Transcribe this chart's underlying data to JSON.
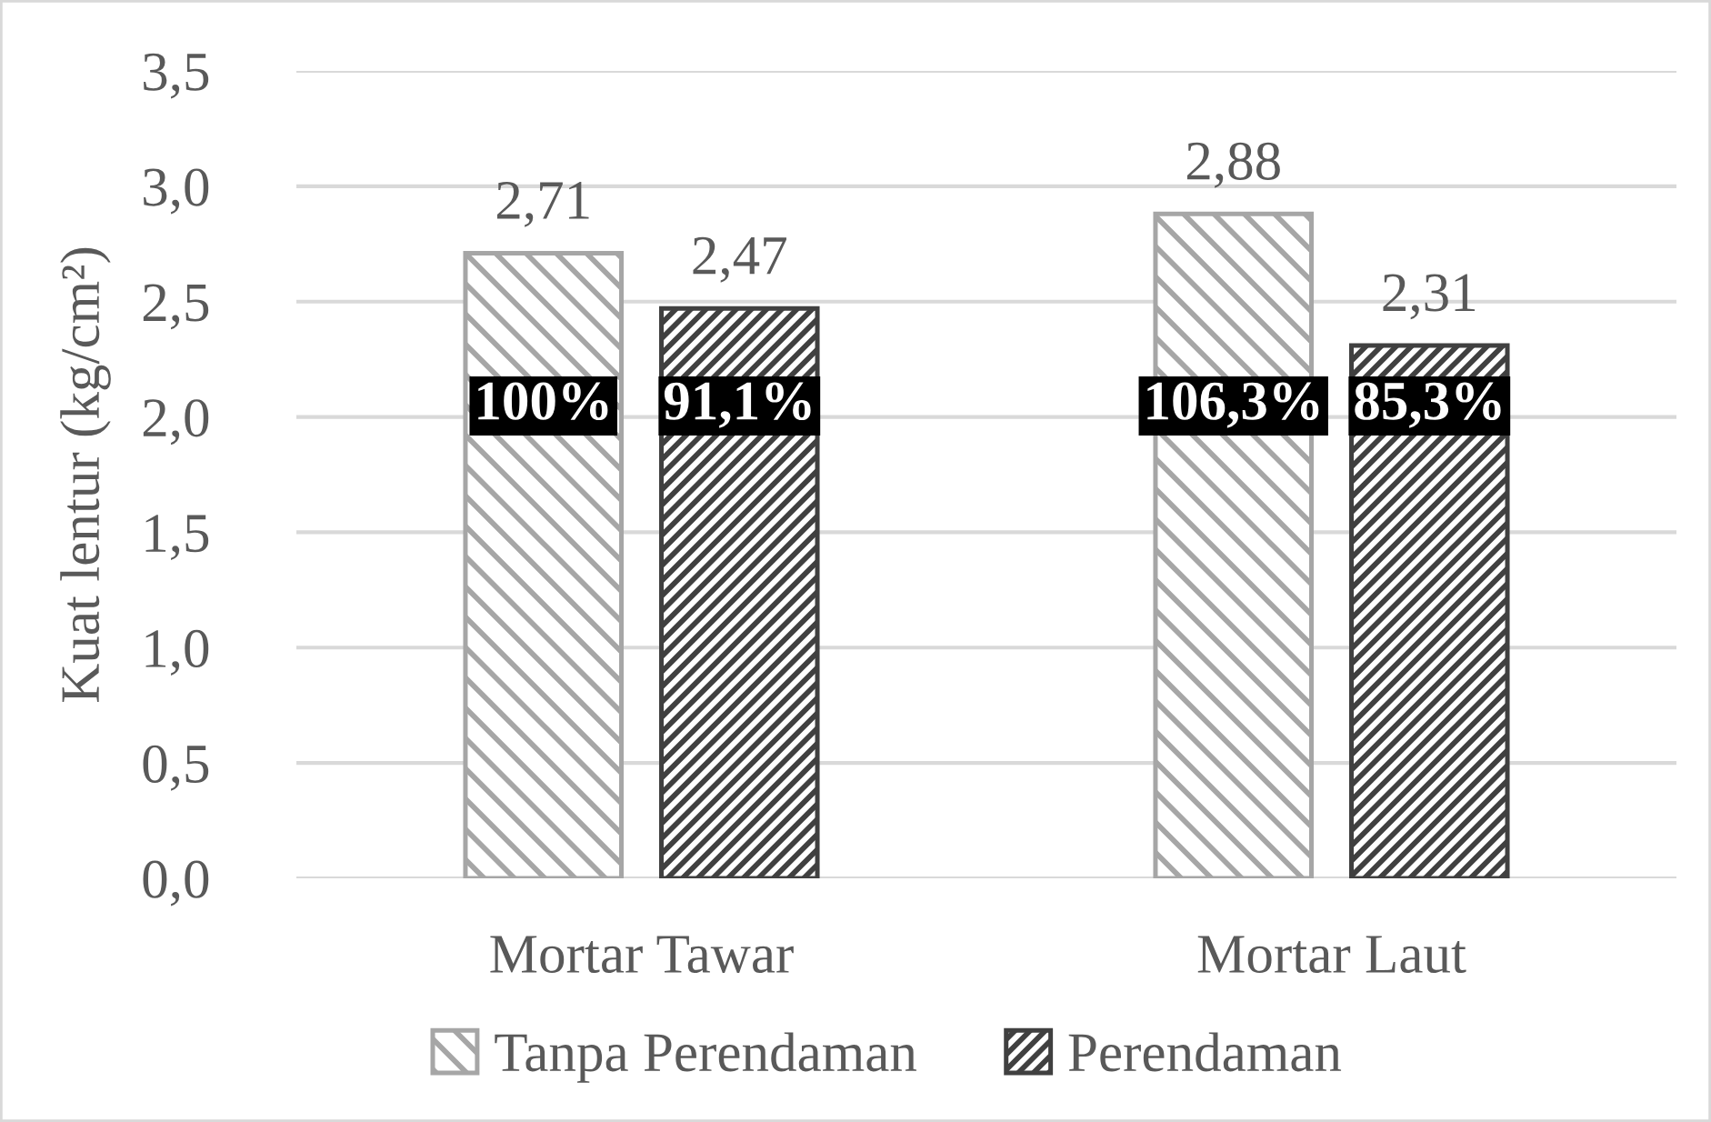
{
  "chart_data": {
    "type": "bar",
    "ylabel": "Kuat lentur (kg/cm²)",
    "categories": [
      "Mortar Tawar",
      "Mortar Laut"
    ],
    "series": [
      {
        "name": "Tanpa Perendaman",
        "color": "#a6a6a6",
        "values": [
          2.71,
          2.88
        ],
        "value_labels": [
          "2,71",
          "2,88"
        ]
      },
      {
        "name": "Perendaman",
        "color": "#404040",
        "values": [
          2.47,
          2.31
        ],
        "value_labels": [
          "2,47",
          "2,31"
        ]
      }
    ],
    "ylim": [
      0,
      3.5
    ],
    "yticks": [
      {
        "value": 0,
        "label": "0,0"
      },
      {
        "value": 0.5,
        "label": "0,5"
      },
      {
        "value": 1,
        "label": "1,0"
      },
      {
        "value": 1.5,
        "label": "1,5"
      },
      {
        "value": 2,
        "label": "2,0"
      },
      {
        "value": 2.5,
        "label": "2,5"
      },
      {
        "value": 3,
        "label": "3,0"
      },
      {
        "value": 3.5,
        "label": "3,5"
      }
    ],
    "grid": "y",
    "legend": "bottom",
    "annotations": [
      "100%",
      "91,1%",
      "106,3%",
      "85,3%"
    ]
  }
}
